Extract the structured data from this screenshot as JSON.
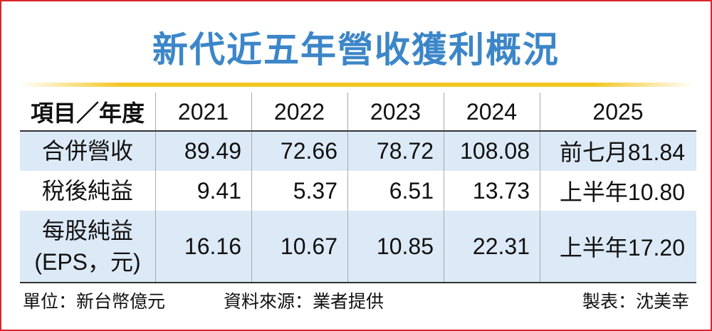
{
  "title": "新代近五年營收獲利概況",
  "table": {
    "header": [
      "項目／年度",
      "2021",
      "2022",
      "2023",
      "2024",
      "2025"
    ],
    "rows": [
      [
        [
          "合併營收"
        ],
        "89.49",
        "72.66",
        "78.72",
        "108.08",
        "前七月81.84"
      ],
      [
        [
          "稅後純益"
        ],
        "9.41",
        "5.37",
        "6.51",
        "13.73",
        "上半年10.80"
      ],
      [
        [
          "每股純益",
          "(EPS，元)"
        ],
        "16.16",
        "10.67",
        "10.85",
        "22.31",
        "上半年17.20"
      ]
    ]
  },
  "footer": {
    "unit": "單位：新台幣億元",
    "source": "資料來源：業者提供",
    "author": "製表：沈美幸"
  }
}
